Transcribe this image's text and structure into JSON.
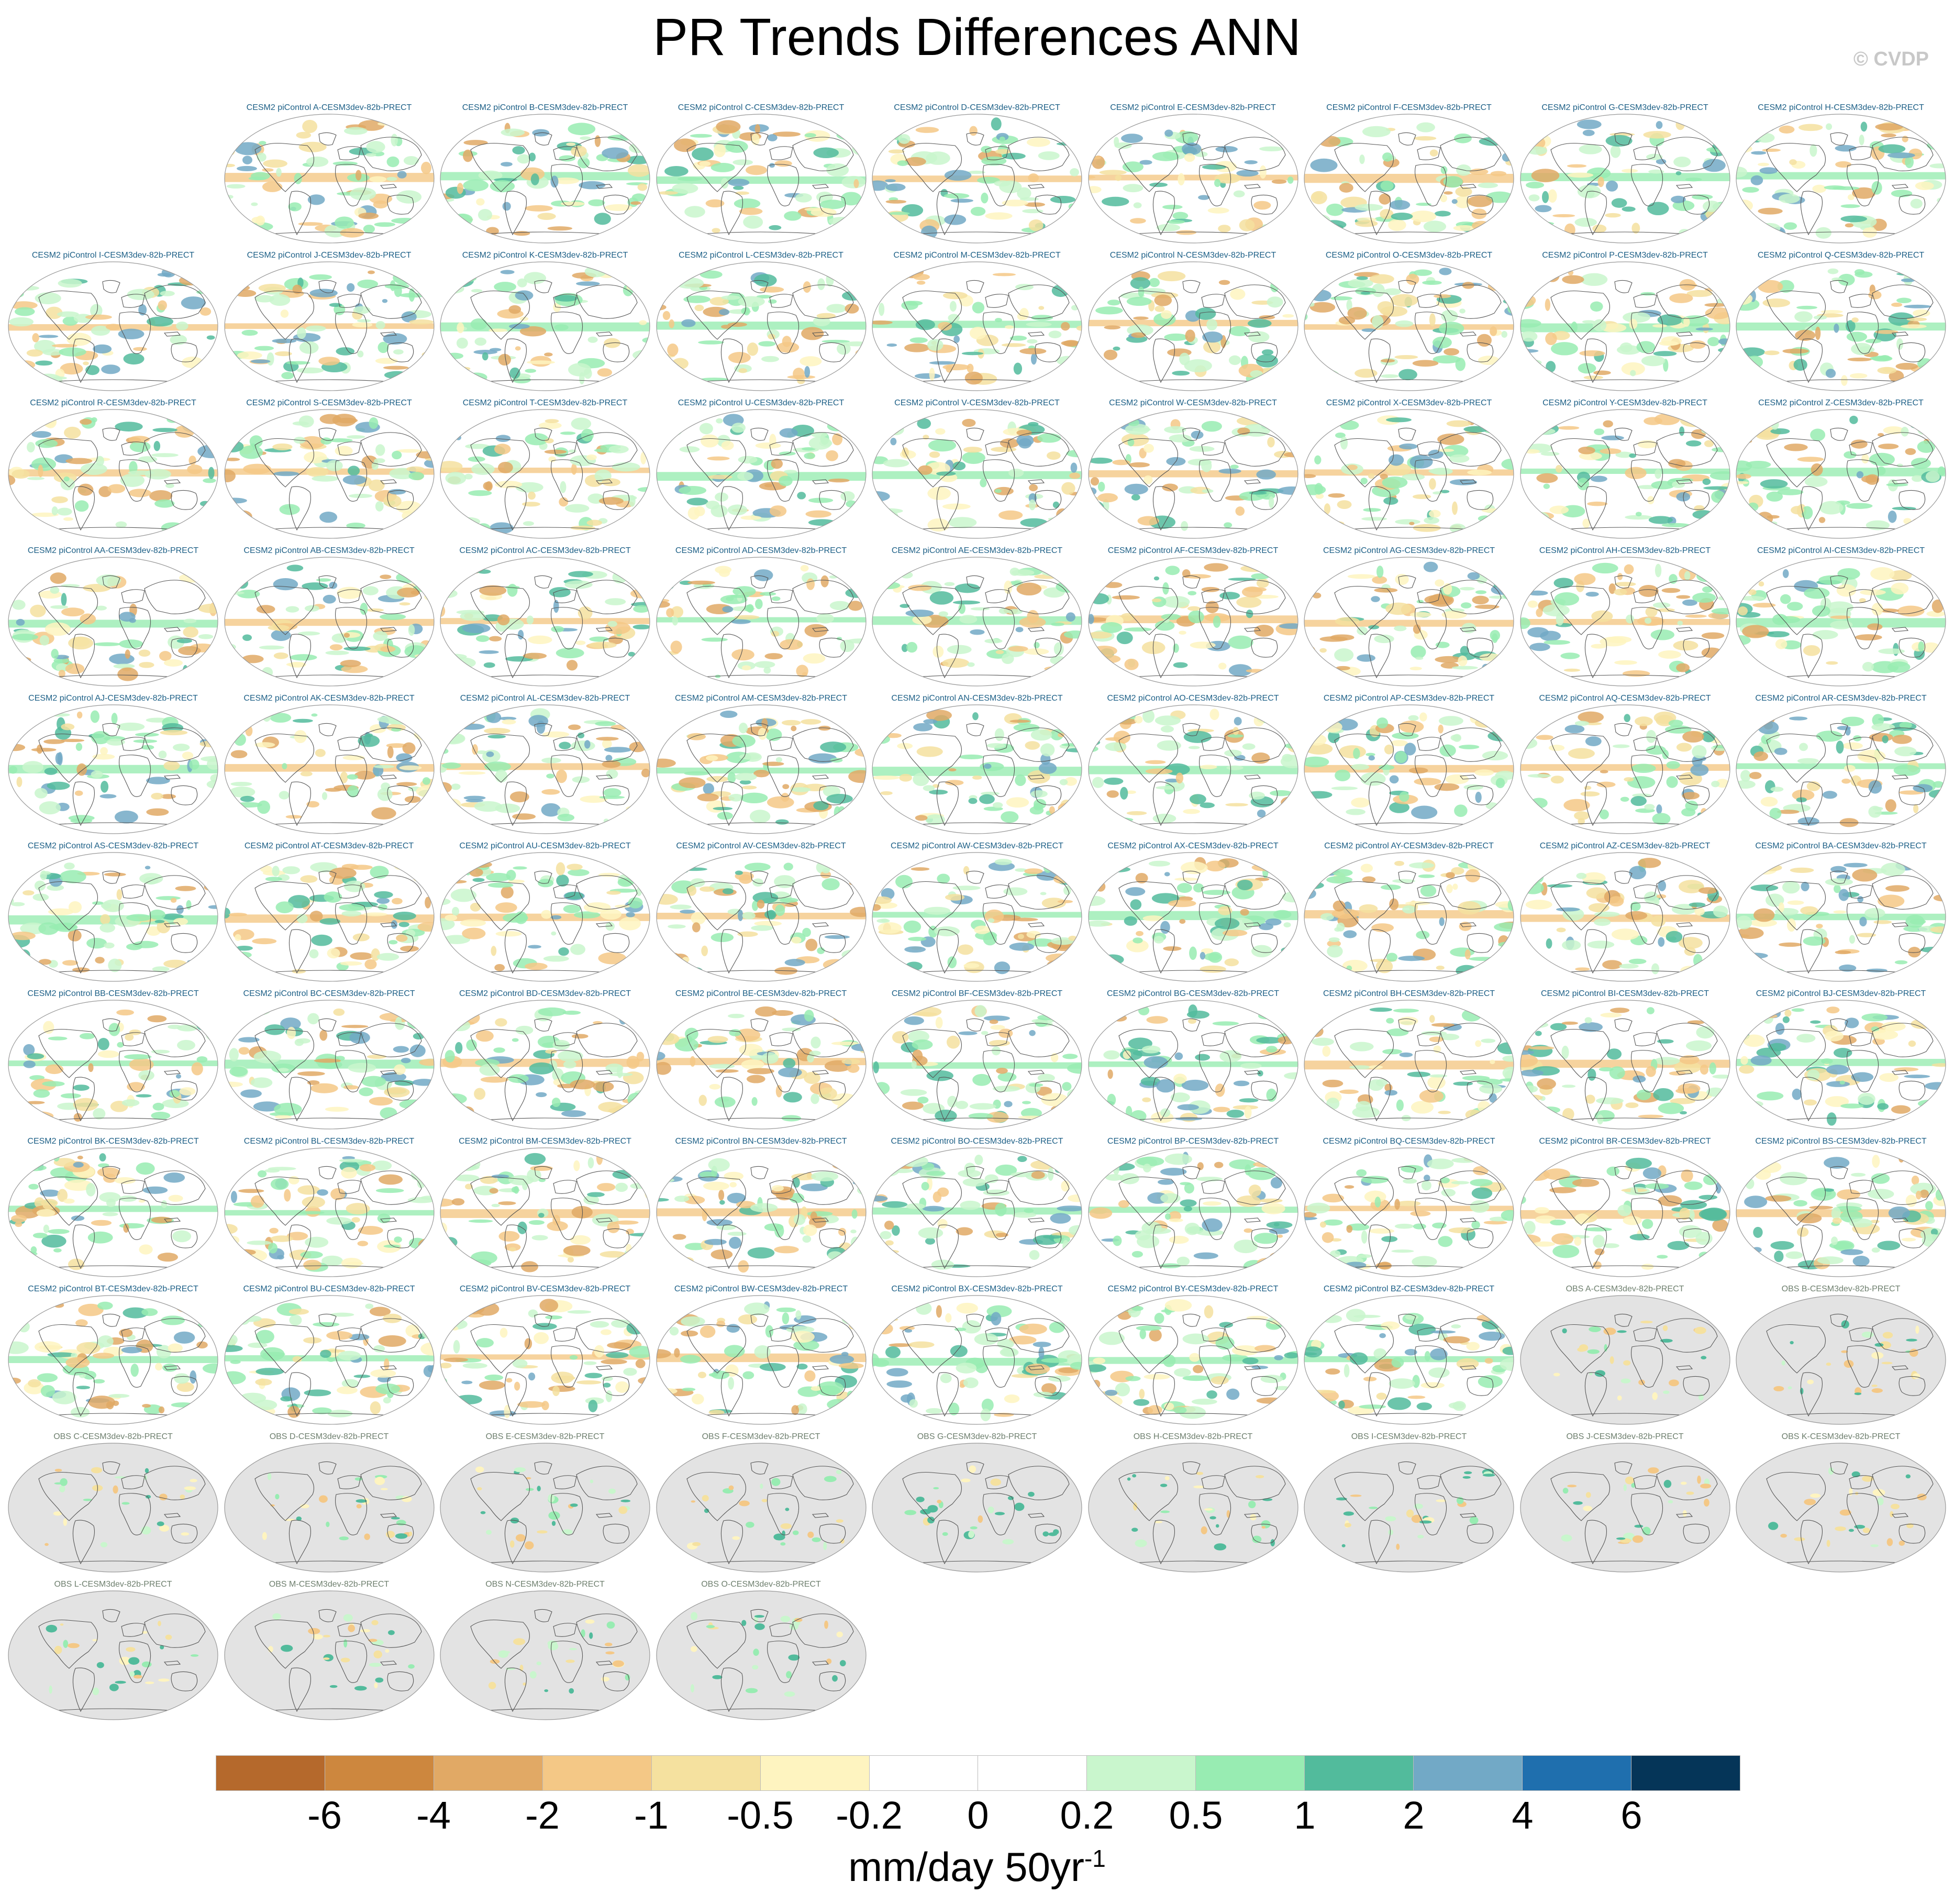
{
  "title": "PR Trends Differences ANN",
  "copyright": "© CVDP",
  "colors": {
    "land_gray": "#e3e3e3",
    "ocean_white": "#ffffff",
    "coast": "#555555"
  },
  "chart_data": {
    "type": "map-grid",
    "title": "PR Trends Differences ANN",
    "variable": "PRECT annual precipitation trend differences",
    "panels": [
      {
        "label": "CESM2 piControl A-CESM3dev-82b-PRECT",
        "kind": "model"
      },
      {
        "label": "CESM2 piControl B-CESM3dev-82b-PRECT",
        "kind": "model"
      },
      {
        "label": "CESM2 piControl C-CESM3dev-82b-PRECT",
        "kind": "model"
      },
      {
        "label": "CESM2 piControl D-CESM3dev-82b-PRECT",
        "kind": "model"
      },
      {
        "label": "CESM2 piControl E-CESM3dev-82b-PRECT",
        "kind": "model"
      },
      {
        "label": "CESM2 piControl F-CESM3dev-82b-PRECT",
        "kind": "model"
      },
      {
        "label": "CESM2 piControl G-CESM3dev-82b-PRECT",
        "kind": "model"
      },
      {
        "label": "CESM2 piControl H-CESM3dev-82b-PRECT",
        "kind": "model"
      },
      {
        "label": "CESM2 piControl I-CESM3dev-82b-PRECT",
        "kind": "model"
      },
      {
        "label": "CESM2 piControl J-CESM3dev-82b-PRECT",
        "kind": "model"
      },
      {
        "label": "CESM2 piControl K-CESM3dev-82b-PRECT",
        "kind": "model"
      },
      {
        "label": "CESM2 piControl L-CESM3dev-82b-PRECT",
        "kind": "model"
      },
      {
        "label": "CESM2 piControl M-CESM3dev-82b-PRECT",
        "kind": "model"
      },
      {
        "label": "CESM2 piControl N-CESM3dev-82b-PRECT",
        "kind": "model"
      },
      {
        "label": "CESM2 piControl O-CESM3dev-82b-PRECT",
        "kind": "model"
      },
      {
        "label": "CESM2 piControl P-CESM3dev-82b-PRECT",
        "kind": "model"
      },
      {
        "label": "CESM2 piControl Q-CESM3dev-82b-PRECT",
        "kind": "model"
      },
      {
        "label": "CESM2 piControl R-CESM3dev-82b-PRECT",
        "kind": "model"
      },
      {
        "label": "CESM2 piControl S-CESM3dev-82b-PRECT",
        "kind": "model"
      },
      {
        "label": "CESM2 piControl T-CESM3dev-82b-PRECT",
        "kind": "model"
      },
      {
        "label": "CESM2 piControl U-CESM3dev-82b-PRECT",
        "kind": "model"
      },
      {
        "label": "CESM2 piControl V-CESM3dev-82b-PRECT",
        "kind": "model"
      },
      {
        "label": "CESM2 piControl W-CESM3dev-82b-PRECT",
        "kind": "model"
      },
      {
        "label": "CESM2 piControl X-CESM3dev-82b-PRECT",
        "kind": "model"
      },
      {
        "label": "CESM2 piControl Y-CESM3dev-82b-PRECT",
        "kind": "model"
      },
      {
        "label": "CESM2 piControl Z-CESM3dev-82b-PRECT",
        "kind": "model"
      },
      {
        "label": "CESM2 piControl AA-CESM3dev-82b-PRECT",
        "kind": "model"
      },
      {
        "label": "CESM2 piControl AB-CESM3dev-82b-PRECT",
        "kind": "model"
      },
      {
        "label": "CESM2 piControl AC-CESM3dev-82b-PRECT",
        "kind": "model"
      },
      {
        "label": "CESM2 piControl AD-CESM3dev-82b-PRECT",
        "kind": "model"
      },
      {
        "label": "CESM2 piControl AE-CESM3dev-82b-PRECT",
        "kind": "model"
      },
      {
        "label": "CESM2 piControl AF-CESM3dev-82b-PRECT",
        "kind": "model"
      },
      {
        "label": "CESM2 piControl AG-CESM3dev-82b-PRECT",
        "kind": "model"
      },
      {
        "label": "CESM2 piControl AH-CESM3dev-82b-PRECT",
        "kind": "model"
      },
      {
        "label": "CESM2 piControl AI-CESM3dev-82b-PRECT",
        "kind": "model"
      },
      {
        "label": "CESM2 piControl AJ-CESM3dev-82b-PRECT",
        "kind": "model"
      },
      {
        "label": "CESM2 piControl AK-CESM3dev-82b-PRECT",
        "kind": "model"
      },
      {
        "label": "CESM2 piControl AL-CESM3dev-82b-PRECT",
        "kind": "model"
      },
      {
        "label": "CESM2 piControl AM-CESM3dev-82b-PRECT",
        "kind": "model"
      },
      {
        "label": "CESM2 piControl AN-CESM3dev-82b-PRECT",
        "kind": "model"
      },
      {
        "label": "CESM2 piControl AO-CESM3dev-82b-PRECT",
        "kind": "model"
      },
      {
        "label": "CESM2 piControl AP-CESM3dev-82b-PRECT",
        "kind": "model"
      },
      {
        "label": "CESM2 piControl AQ-CESM3dev-82b-PRECT",
        "kind": "model"
      },
      {
        "label": "CESM2 piControl AR-CESM3dev-82b-PRECT",
        "kind": "model"
      },
      {
        "label": "CESM2 piControl AS-CESM3dev-82b-PRECT",
        "kind": "model"
      },
      {
        "label": "CESM2 piControl AT-CESM3dev-82b-PRECT",
        "kind": "model"
      },
      {
        "label": "CESM2 piControl AU-CESM3dev-82b-PRECT",
        "kind": "model"
      },
      {
        "label": "CESM2 piControl AV-CESM3dev-82b-PRECT",
        "kind": "model"
      },
      {
        "label": "CESM2 piControl AW-CESM3dev-82b-PRECT",
        "kind": "model"
      },
      {
        "label": "CESM2 piControl AX-CESM3dev-82b-PRECT",
        "kind": "model"
      },
      {
        "label": "CESM2 piControl AY-CESM3dev-82b-PRECT",
        "kind": "model"
      },
      {
        "label": "CESM2 piControl AZ-CESM3dev-82b-PRECT",
        "kind": "model"
      },
      {
        "label": "CESM2 piControl BA-CESM3dev-82b-PRECT",
        "kind": "model"
      },
      {
        "label": "CESM2 piControl BB-CESM3dev-82b-PRECT",
        "kind": "model"
      },
      {
        "label": "CESM2 piControl BC-CESM3dev-82b-PRECT",
        "kind": "model"
      },
      {
        "label": "CESM2 piControl BD-CESM3dev-82b-PRECT",
        "kind": "model"
      },
      {
        "label": "CESM2 piControl BE-CESM3dev-82b-PRECT",
        "kind": "model"
      },
      {
        "label": "CESM2 piControl BF-CESM3dev-82b-PRECT",
        "kind": "model"
      },
      {
        "label": "CESM2 piControl BG-CESM3dev-82b-PRECT",
        "kind": "model"
      },
      {
        "label": "CESM2 piControl BH-CESM3dev-82b-PRECT",
        "kind": "model"
      },
      {
        "label": "CESM2 piControl BI-CESM3dev-82b-PRECT",
        "kind": "model"
      },
      {
        "label": "CESM2 piControl BJ-CESM3dev-82b-PRECT",
        "kind": "model"
      },
      {
        "label": "CESM2 piControl BK-CESM3dev-82b-PRECT",
        "kind": "model"
      },
      {
        "label": "CESM2 piControl BL-CESM3dev-82b-PRECT",
        "kind": "model"
      },
      {
        "label": "CESM2 piControl BM-CESM3dev-82b-PRECT",
        "kind": "model"
      },
      {
        "label": "CESM2 piControl BN-CESM3dev-82b-PRECT",
        "kind": "model"
      },
      {
        "label": "CESM2 piControl BO-CESM3dev-82b-PRECT",
        "kind": "model"
      },
      {
        "label": "CESM2 piControl BP-CESM3dev-82b-PRECT",
        "kind": "model"
      },
      {
        "label": "CESM2 piControl BQ-CESM3dev-82b-PRECT",
        "kind": "model"
      },
      {
        "label": "CESM2 piControl BR-CESM3dev-82b-PRECT",
        "kind": "model"
      },
      {
        "label": "CESM2 piControl BS-CESM3dev-82b-PRECT",
        "kind": "model"
      },
      {
        "label": "CESM2 piControl BT-CESM3dev-82b-PRECT",
        "kind": "model"
      },
      {
        "label": "CESM2 piControl BU-CESM3dev-82b-PRECT",
        "kind": "model"
      },
      {
        "label": "CESM2 piControl BV-CESM3dev-82b-PRECT",
        "kind": "model"
      },
      {
        "label": "CESM2 piControl BW-CESM3dev-82b-PRECT",
        "kind": "model"
      },
      {
        "label": "CESM2 piControl BX-CESM3dev-82b-PRECT",
        "kind": "model"
      },
      {
        "label": "CESM2 piControl BY-CESM3dev-82b-PRECT",
        "kind": "model"
      },
      {
        "label": "CESM2 piControl BZ-CESM3dev-82b-PRECT",
        "kind": "model"
      },
      {
        "label": "OBS A-CESM3dev-82b-PRECT",
        "kind": "obs"
      },
      {
        "label": "OBS B-CESM3dev-82b-PRECT",
        "kind": "obs"
      },
      {
        "label": "OBS C-CESM3dev-82b-PRECT",
        "kind": "obs"
      },
      {
        "label": "OBS D-CESM3dev-82b-PRECT",
        "kind": "obs"
      },
      {
        "label": "OBS E-CESM3dev-82b-PRECT",
        "kind": "obs"
      },
      {
        "label": "OBS F-CESM3dev-82b-PRECT",
        "kind": "obs"
      },
      {
        "label": "OBS G-CESM3dev-82b-PRECT",
        "kind": "obs"
      },
      {
        "label": "OBS H-CESM3dev-82b-PRECT",
        "kind": "obs"
      },
      {
        "label": "OBS I-CESM3dev-82b-PRECT",
        "kind": "obs"
      },
      {
        "label": "OBS J-CESM3dev-82b-PRECT",
        "kind": "obs"
      },
      {
        "label": "OBS K-CESM3dev-82b-PRECT",
        "kind": "obs"
      },
      {
        "label": "OBS L-CESM3dev-82b-PRECT",
        "kind": "obs"
      },
      {
        "label": "OBS M-CESM3dev-82b-PRECT",
        "kind": "obs"
      },
      {
        "label": "OBS N-CESM3dev-82b-PRECT",
        "kind": "obs"
      },
      {
        "label": "OBS O-CESM3dev-82b-PRECT",
        "kind": "obs"
      }
    ],
    "colorbar": {
      "tick_labels": [
        "-6",
        "-4",
        "-2",
        "-1",
        "-0.5",
        "-0.2",
        "0",
        "0.2",
        "0.5",
        "1",
        "2",
        "4",
        "6"
      ],
      "colors": [
        "#b5692c",
        "#cd873e",
        "#e1a965",
        "#f4c886",
        "#f5e19f",
        "#fef4c0",
        "#ffffff",
        "#ffffff",
        "#c9f6cd",
        "#98ecb2",
        "#52bb9c",
        "#72a9c6",
        "#1f6fae",
        "#053558"
      ],
      "units": "mm/day 50yr",
      "units_exponent": "-1"
    }
  }
}
